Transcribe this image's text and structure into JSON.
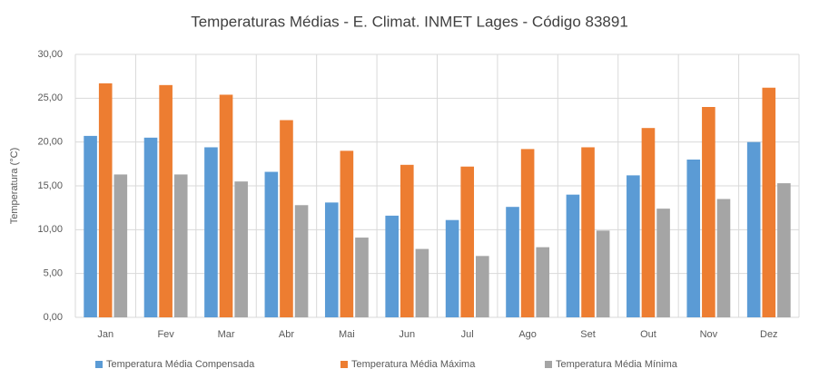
{
  "chart_data": {
    "type": "bar",
    "title": "Temperaturas Médias - E. Climat. INMET Lages - Código 83891",
    "y_label": "Temperatura (°C)",
    "categories": [
      "Jan",
      "Fev",
      "Mar",
      "Abr",
      "Mai",
      "Jun",
      "Jul",
      "Ago",
      "Set",
      "Out",
      "Nov",
      "Dez"
    ],
    "series": [
      {
        "name": "Temperatura Média Compensada",
        "color": "#5b9bd5",
        "values": [
          20.7,
          20.5,
          19.4,
          16.6,
          13.1,
          11.6,
          11.1,
          12.6,
          14.0,
          16.2,
          18.0,
          20.0
        ]
      },
      {
        "name": "Temperatura Média Máxima",
        "color": "#ed7d31",
        "values": [
          26.7,
          26.5,
          25.4,
          22.5,
          19.0,
          17.4,
          17.2,
          19.2,
          19.4,
          21.6,
          24.0,
          26.2
        ]
      },
      {
        "name": "Temperatura Média Mínima",
        "color": "#a5a5a5",
        "values": [
          16.3,
          16.3,
          15.5,
          12.8,
          9.1,
          7.8,
          7.0,
          8.0,
          9.9,
          12.4,
          13.5,
          15.3
        ]
      }
    ],
    "ylim": [
      0,
      30
    ],
    "yticks": [
      {
        "value": 0,
        "label": "0,00"
      },
      {
        "value": 5,
        "label": "5,00"
      },
      {
        "value": 10,
        "label": "10,00"
      },
      {
        "value": 15,
        "label": "15,00"
      },
      {
        "value": 20,
        "label": "20,00"
      },
      {
        "value": 25,
        "label": "25,00"
      },
      {
        "value": 30,
        "label": "30,00"
      }
    ],
    "grid": true,
    "legend": "bottom"
  }
}
